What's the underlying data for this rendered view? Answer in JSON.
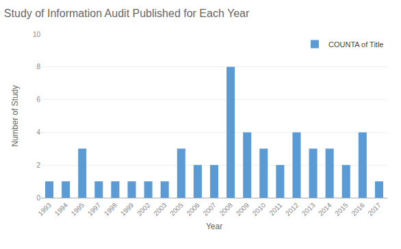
{
  "chart_data": {
    "type": "bar",
    "title": "Study of Information Audit Published for Each Year",
    "xlabel": "Year",
    "ylabel": "Number of Study",
    "categories": [
      "1993",
      "1994",
      "1995",
      "1997",
      "1998",
      "1999",
      "2002",
      "2003",
      "2005",
      "2006",
      "2007",
      "2008",
      "2009",
      "2010",
      "2011",
      "2012",
      "2013",
      "2014",
      "2015",
      "2016",
      "2017"
    ],
    "series": [
      {
        "name": "COUNTA of Title",
        "color": "#5B9BD5",
        "values": [
          1,
          1,
          3,
          1,
          1,
          1,
          1,
          1,
          3,
          2,
          2,
          8,
          4,
          3,
          2,
          4,
          3,
          3,
          2,
          4,
          1
        ]
      }
    ],
    "ylim": [
      0,
      10
    ],
    "yticks": [
      0,
      2,
      4,
      6,
      8,
      10
    ],
    "grid": true,
    "legend": "upper right"
  }
}
